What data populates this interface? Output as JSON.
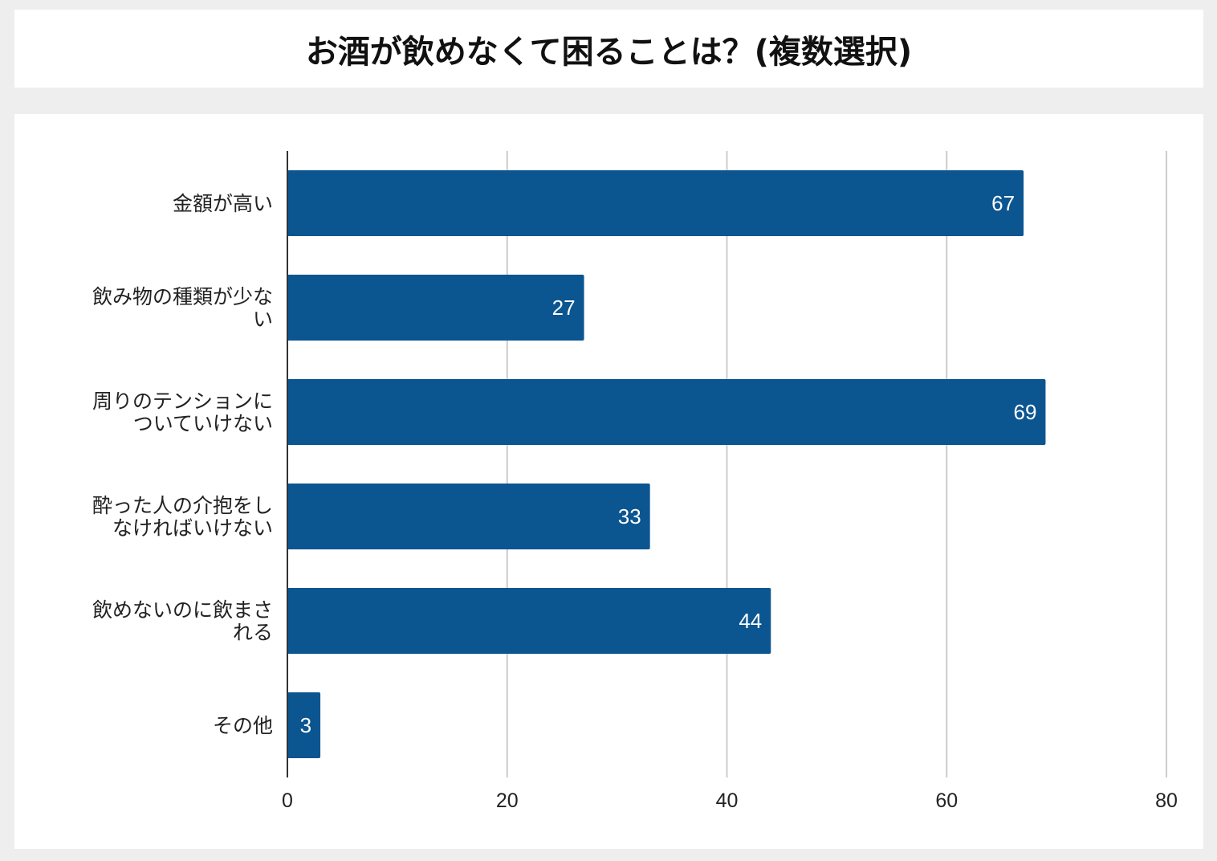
{
  "chart_data": {
    "type": "bar",
    "orientation": "horizontal",
    "title": "お酒が飲めなくて困ることは？(複数選択)",
    "categories": [
      [
        "金額が高い"
      ],
      [
        "飲み物の種類が少な",
        "い"
      ],
      [
        "周りのテンションに",
        "ついていけない"
      ],
      [
        "酔った人の介抱をし",
        "なければいけない"
      ],
      [
        "飲めないのに飲まさ",
        "れる"
      ],
      [
        "その他"
      ]
    ],
    "values": [
      67,
      27,
      69,
      33,
      44,
      3
    ],
    "xlim": [
      0,
      80
    ],
    "xticks": [
      0,
      20,
      40,
      60,
      80
    ],
    "grid": true,
    "data_labels": true,
    "colors": {
      "bar": "#0b5591",
      "grid": "#cccccc",
      "axis": "#333333"
    }
  }
}
